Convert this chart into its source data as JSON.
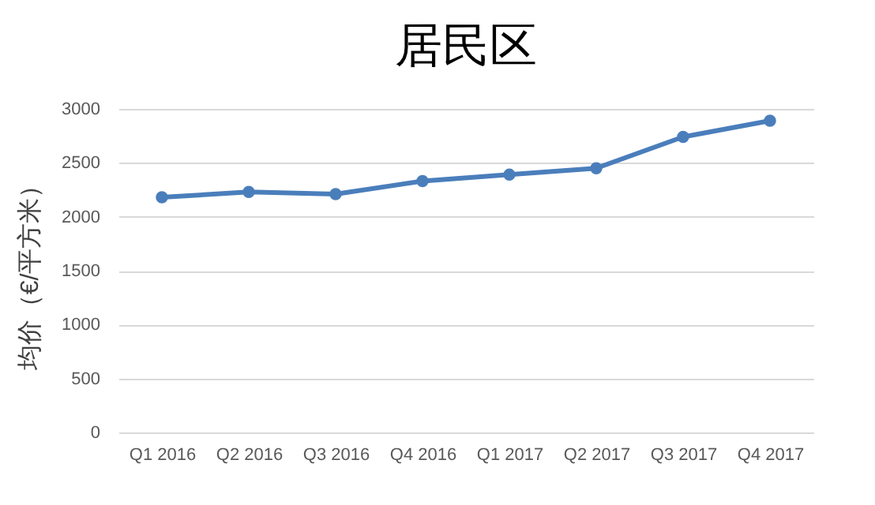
{
  "chart_data": {
    "type": "line",
    "title": "居民区",
    "ylabel": "均价（€/平方米）",
    "categories": [
      "Q1 2016",
      "Q2 2016",
      "Q3 2016",
      "Q4 2016",
      "Q1 2017",
      "Q2 2017",
      "Q3 2017",
      "Q4 2017"
    ],
    "series": [
      {
        "color": "#4a7ebb",
        "values": [
          2180,
          2230,
          2210,
          2330,
          2390,
          2450,
          2740,
          2890
        ]
      }
    ],
    "ylim": [
      0,
      3000
    ],
    "yticks": [
      0,
      500,
      1000,
      1500,
      2000,
      2500,
      3000
    ],
    "grid": "y",
    "marker": "circle"
  }
}
